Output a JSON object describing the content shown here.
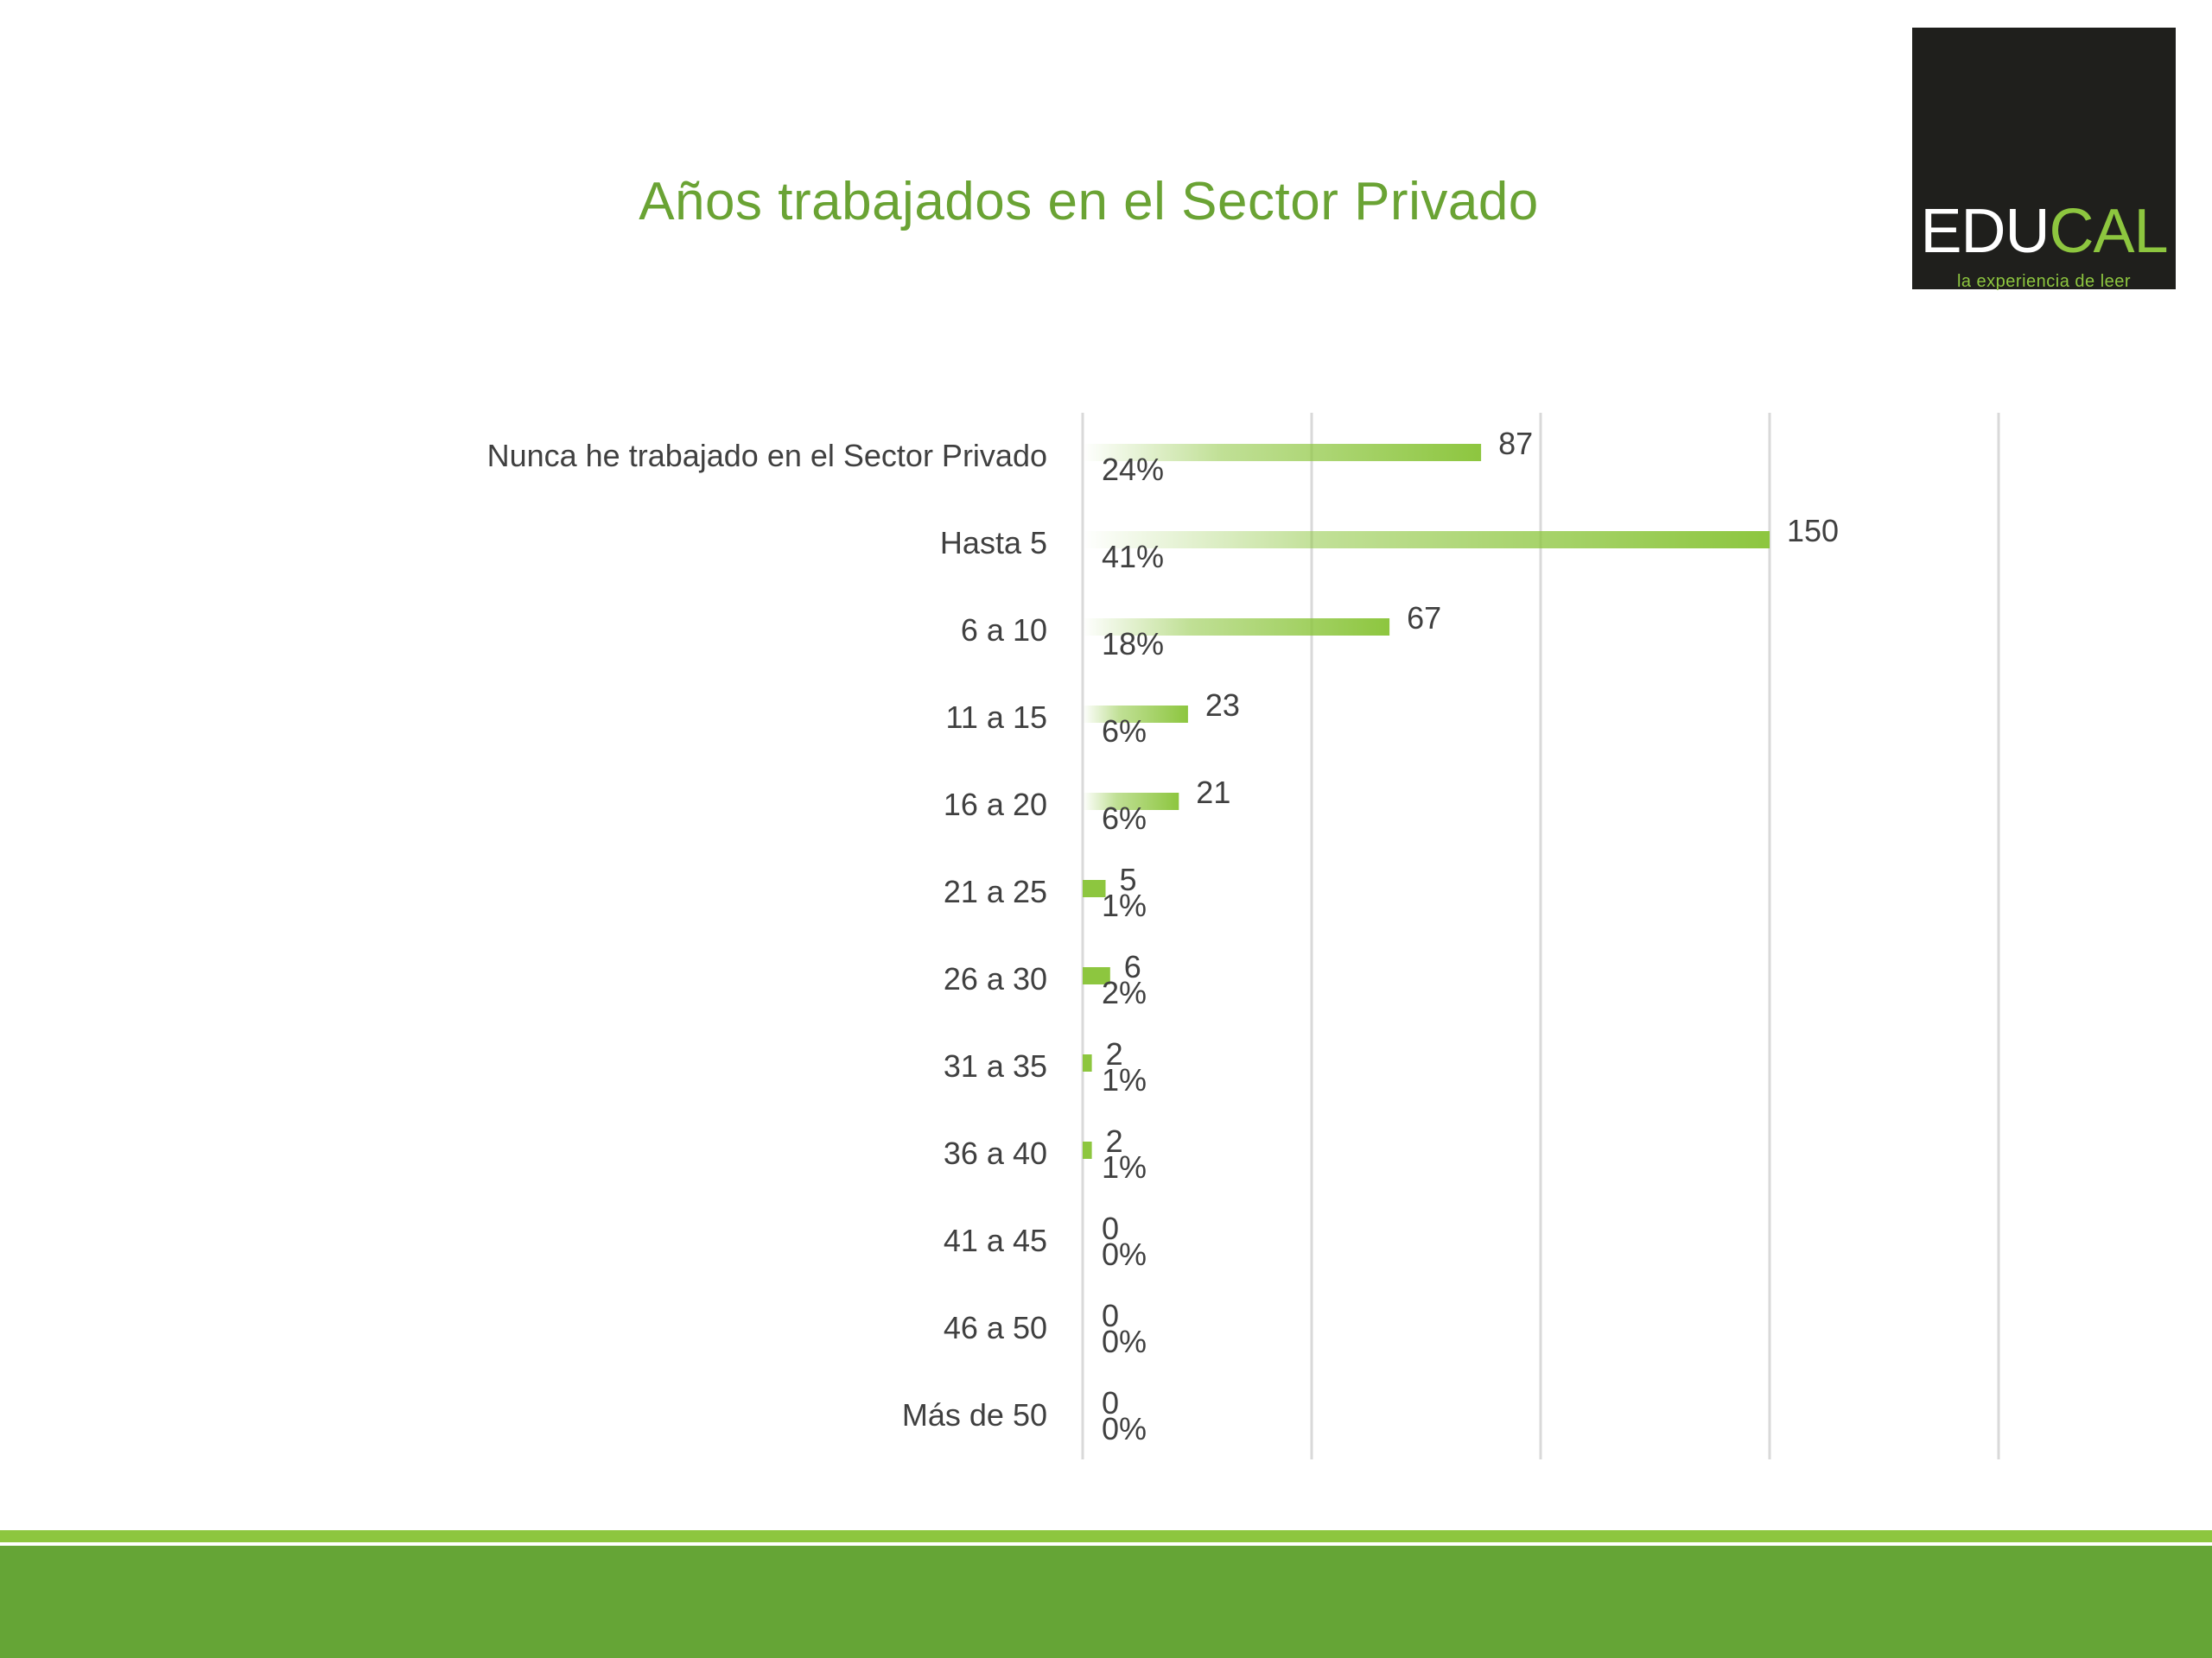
{
  "slide": {
    "title": "Años trabajados en el Sector Privado"
  },
  "logo": {
    "word_part1": "EDU",
    "word_part2": "CAL",
    "tagline": "la experiencia de leer"
  },
  "colors": {
    "title": "#6aa334",
    "bar": "#8dc63f",
    "footer": "#65a536",
    "footer_line": "#8dc63f",
    "logo_bg": "#1f1f1c"
  },
  "chart_data": {
    "type": "bar",
    "orientation": "horizontal",
    "categories": [
      "Nunca he trabajado en el Sector Privado",
      "Hasta 5",
      "6 a 10",
      "11 a 15",
      "16 a 20",
      "21 a 25",
      "26 a 30",
      "31 a 35",
      "36 a 40",
      "41 a 45",
      "46 a 50",
      "Más de 50"
    ],
    "series": [
      {
        "values": [
          87,
          150,
          67,
          23,
          21,
          5,
          6,
          2,
          2,
          0,
          0,
          0
        ]
      }
    ],
    "percent_labels": [
      "24%",
      "41%",
      "18%",
      "6%",
      "6%",
      "1%",
      "2%",
      "1%",
      "1%",
      "0%",
      "0%",
      "0%"
    ],
    "xlim": [
      0,
      200
    ],
    "gridlines": [
      0,
      50,
      100,
      150,
      200
    ],
    "grid": true,
    "title": "",
    "xlabel": "",
    "ylabel": ""
  }
}
